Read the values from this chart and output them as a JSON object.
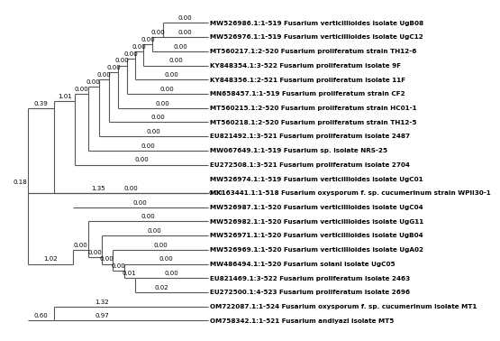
{
  "taxa": [
    "MW526986.1:1-519 Fusarium verticillioides isolate UgB08",
    "MW526976.1:1-519 Fusarium verticillioides isolate UgC12",
    "MT560217.1:2-520 Fusarium proliferatum strain TH12-6",
    "KY848354.1:3-522 Fusarium proliferatum isolate 9F",
    "KY848356.1:2-521 Fusarium proliferatum isolate 11F",
    "MN658457.1:1-519 Fusarium proliferatum strain CF2",
    "MT560215.1:2-520 Fusarium proliferatum strain HC01-1",
    "MT560218.1:2-520 Fusarium proliferatum strain TH12-5",
    "EU821492.1:3-521 Fusarium proliferatum isolate 2487",
    "MW067649.1:1-519 Fusarium sp. isolate NRS-25",
    "EU272508.1:3-521 Fusarium proliferatum isolate 2704",
    "MW526974.1:1-519 Fusarium verticillioides isolate UgC01",
    "MK163441.1:1-518 Fusarium oxysporum f. sp. cucumerinum strain WPII30-1",
    "MW526987.1:1-520 Fusarium verticillioides isolate UgC04",
    "MW526982.1:1-520 Fusarium verticillioides isolate UgG11",
    "MW526971.1:1-520 Fusarium verticillioides isolate UgB04",
    "MW526969.1:1-520 Fusarium verticillioides isolate UgA02",
    "MW486494.1:1-520 Fusarium solani isolate UgC05",
    "EU821469.1:3-522 Fusarium proliferatum isolate 2463",
    "EU272500.1:4-523 Fusarium proliferatum isolate 2696",
    "OM722087.1:1-524 Fusarium oxysporum f. sp. cucumerinum isolate MT1",
    "OM758342.1:1-521 Fusarium andiyazi isolate MT5"
  ],
  "background_color": "#ffffff",
  "line_color": "#555555",
  "text_color": "#000000",
  "label_fontsize": 5.2,
  "branch_label_fontsize": 5.0
}
